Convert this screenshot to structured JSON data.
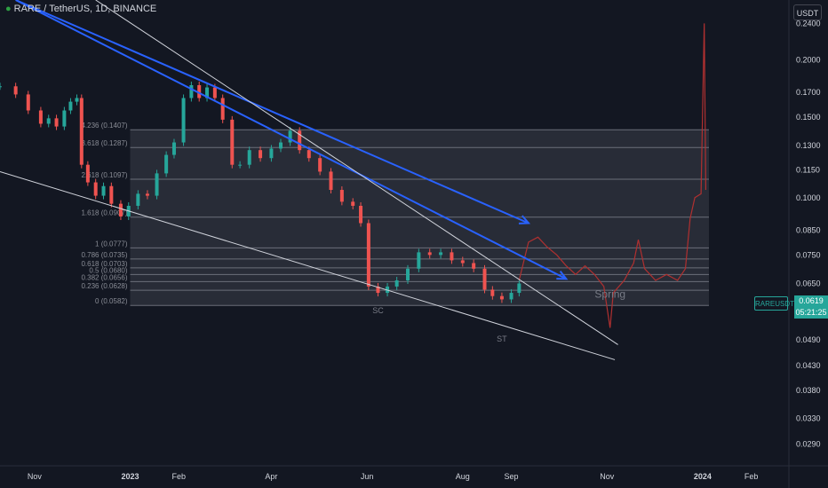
{
  "header": {
    "symbol": "RARE / TetherUS, 1D, BINANCE",
    "unit_button": "USDT"
  },
  "price_tag": {
    "symbol_label": "RAREUSDT",
    "price": "0.0619",
    "countdown": "05:21:25",
    "color": "#26a69a"
  },
  "chart_data": {
    "type": "line",
    "title": "RARE / TetherUS, 1D, BINANCE",
    "y_scale": "log",
    "ylim": [
      0.026,
      0.27
    ],
    "y_ticks": [
      0.24,
      0.2,
      0.17,
      0.15,
      0.13,
      0.115,
      0.1,
      0.085,
      0.075,
      0.065,
      0.049,
      0.043,
      0.038,
      0.033,
      0.029
    ],
    "y_tick_labels": [
      "0.2400",
      "0.2000",
      "0.1700",
      "0.1500",
      "0.1300",
      "0.1150",
      "0.1000",
      "0.0850",
      "0.0750",
      "0.0650",
      "0.0490",
      "0.0430",
      "0.0380",
      "0.0330",
      "0.0290"
    ],
    "x_axis_type": "date",
    "xlim": [
      "2022-10-10",
      "2024-02-25"
    ],
    "x_ticks": [
      "2022-11-01",
      "2023-01-01",
      "2023-02-01",
      "2023-04-01",
      "2023-06-01",
      "2023-08-01",
      "2023-09-01",
      "2023-11-01",
      "2024-01-01",
      "2024-02-01"
    ],
    "x_tick_labels": [
      "Nov",
      "2023",
      "Feb",
      "Apr",
      "Jun",
      "Aug",
      "Sep",
      "Nov",
      "2024",
      "Feb"
    ],
    "series": [
      {
        "style": "candles",
        "colors": {
          "up": "#26a69a",
          "down": "#ef5350"
        },
        "points": [
          {
            "x": "2022-10-10",
            "y": 0.175
          },
          {
            "x": "2022-10-20",
            "y": 0.168
          },
          {
            "x": "2022-10-28",
            "y": 0.155
          },
          {
            "x": "2022-11-05",
            "y": 0.145
          },
          {
            "x": "2022-11-10",
            "y": 0.149
          },
          {
            "x": "2022-11-15",
            "y": 0.143
          },
          {
            "x": "2022-11-20",
            "y": 0.155
          },
          {
            "x": "2022-11-24",
            "y": 0.162
          },
          {
            "x": "2022-11-28",
            "y": 0.165
          },
          {
            "x": "2022-12-01",
            "y": 0.118
          },
          {
            "x": "2022-12-05",
            "y": 0.108
          },
          {
            "x": "2022-12-10",
            "y": 0.101
          },
          {
            "x": "2022-12-15",
            "y": 0.106
          },
          {
            "x": "2022-12-20",
            "y": 0.097
          },
          {
            "x": "2022-12-26",
            "y": 0.091
          },
          {
            "x": "2022-12-31",
            "y": 0.096
          },
          {
            "x": "2023-01-06",
            "y": 0.102
          },
          {
            "x": "2023-01-12",
            "y": 0.101
          },
          {
            "x": "2023-01-18",
            "y": 0.113
          },
          {
            "x": "2023-01-24",
            "y": 0.124
          },
          {
            "x": "2023-01-29",
            "y": 0.132
          },
          {
            "x": "2023-02-04",
            "y": 0.165
          },
          {
            "x": "2023-02-09",
            "y": 0.176
          },
          {
            "x": "2023-02-14",
            "y": 0.165
          },
          {
            "x": "2023-02-19",
            "y": 0.174
          },
          {
            "x": "2023-02-24",
            "y": 0.165
          },
          {
            "x": "2023-03-01",
            "y": 0.148
          },
          {
            "x": "2023-03-07",
            "y": 0.118
          },
          {
            "x": "2023-03-12",
            "y": 0.118
          },
          {
            "x": "2023-03-18",
            "y": 0.127
          },
          {
            "x": "2023-03-25",
            "y": 0.122
          },
          {
            "x": "2023-04-01",
            "y": 0.128
          },
          {
            "x": "2023-04-07",
            "y": 0.132
          },
          {
            "x": "2023-04-13",
            "y": 0.14
          },
          {
            "x": "2023-04-19",
            "y": 0.127
          },
          {
            "x": "2023-04-25",
            "y": 0.122
          },
          {
            "x": "2023-05-02",
            "y": 0.114
          },
          {
            "x": "2023-05-09",
            "y": 0.104
          },
          {
            "x": "2023-05-16",
            "y": 0.098
          },
          {
            "x": "2023-05-23",
            "y": 0.096
          },
          {
            "x": "2023-05-28",
            "y": 0.088
          },
          {
            "x": "2023-06-02",
            "y": 0.064
          },
          {
            "x": "2023-06-08",
            "y": 0.062
          },
          {
            "x": "2023-06-14",
            "y": 0.064
          },
          {
            "x": "2023-06-20",
            "y": 0.066
          },
          {
            "x": "2023-06-27",
            "y": 0.07
          },
          {
            "x": "2023-07-04",
            "y": 0.076
          },
          {
            "x": "2023-07-11",
            "y": 0.075
          },
          {
            "x": "2023-07-18",
            "y": 0.076
          },
          {
            "x": "2023-07-25",
            "y": 0.073
          },
          {
            "x": "2023-08-01",
            "y": 0.072
          },
          {
            "x": "2023-08-08",
            "y": 0.07
          },
          {
            "x": "2023-08-15",
            "y": 0.063
          },
          {
            "x": "2023-08-20",
            "y": 0.061
          },
          {
            "x": "2023-08-26",
            "y": 0.06
          },
          {
            "x": "2023-09-01",
            "y": 0.062
          },
          {
            "x": "2023-09-06",
            "y": 0.065
          }
        ]
      },
      {
        "style": "projection-line",
        "color": "#b03030",
        "points": [
          {
            "x": "2023-09-06",
            "y": 0.066
          },
          {
            "x": "2023-09-12",
            "y": 0.08
          },
          {
            "x": "2023-09-18",
            "y": 0.082
          },
          {
            "x": "2023-09-24",
            "y": 0.078
          },
          {
            "x": "2023-09-30",
            "y": 0.075
          },
          {
            "x": "2023-10-06",
            "y": 0.071
          },
          {
            "x": "2023-10-12",
            "y": 0.068
          },
          {
            "x": "2023-10-18",
            "y": 0.071
          },
          {
            "x": "2023-10-24",
            "y": 0.068
          },
          {
            "x": "2023-10-30",
            "y": 0.064
          },
          {
            "x": "2023-11-03",
            "y": 0.052
          },
          {
            "x": "2023-11-05",
            "y": 0.062
          },
          {
            "x": "2023-11-12",
            "y": 0.066
          },
          {
            "x": "2023-11-18",
            "y": 0.072
          },
          {
            "x": "2023-11-21",
            "y": 0.081
          },
          {
            "x": "2023-11-25",
            "y": 0.07
          },
          {
            "x": "2023-12-02",
            "y": 0.066
          },
          {
            "x": "2023-12-09",
            "y": 0.068
          },
          {
            "x": "2023-12-16",
            "y": 0.066
          },
          {
            "x": "2023-12-21",
            "y": 0.07
          },
          {
            "x": "2023-12-24",
            "y": 0.09
          },
          {
            "x": "2023-12-27",
            "y": 0.1
          },
          {
            "x": "2023-12-31",
            "y": 0.102
          },
          {
            "x": "2024-01-02",
            "y": 0.24
          },
          {
            "x": "2024-01-03",
            "y": 0.104
          }
        ]
      }
    ],
    "fib_levels": [
      {
        "ratio": 4.236,
        "label": "4.236 (0.1407)",
        "price": 0.1407
      },
      {
        "ratio": 3.618,
        "label": "3.618 (0.1287)",
        "price": 0.1287
      },
      {
        "ratio": 2.618,
        "label": "2.618 (0.1097)",
        "price": 0.1097
      },
      {
        "ratio": 1.618,
        "label": "1.618 (0.0907)",
        "price": 0.0907
      },
      {
        "ratio": 1,
        "label": "1 (0.0777)",
        "price": 0.0777
      },
      {
        "ratio": 0.786,
        "label": "0.786 (0.0735)",
        "price": 0.0735
      },
      {
        "ratio": 0.618,
        "label": "0.618 (0.0703)",
        "price": 0.0703
      },
      {
        "ratio": 0.5,
        "label": "0.5 (0.0680)",
        "price": 0.068
      },
      {
        "ratio": 0.382,
        "label": "0.382 (0.0656)",
        "price": 0.0656
      },
      {
        "ratio": 0.236,
        "label": "0.236 (0.0628)",
        "price": 0.0628
      },
      {
        "ratio": 0,
        "label": "0 (0.0582)",
        "price": 0.0582
      }
    ],
    "fib_range": {
      "x_start": "2023-01-01",
      "x_end": "2024-01-05",
      "color": "#787b86"
    },
    "annotations": [
      {
        "text": "SC",
        "x": "2023-06-08",
        "y": 0.056
      },
      {
        "text": "ST",
        "x": "2023-08-26",
        "y": 0.0485
      },
      {
        "text": "Spring",
        "x": "2023-11-03",
        "y": 0.0605
      }
    ],
    "trendlines": [
      {
        "color": "#2962ff",
        "arrow": true,
        "points": [
          {
            "x": "2022-10-20",
            "y": 0.3
          },
          {
            "x": "2023-09-12",
            "y": 0.088
          }
        ]
      },
      {
        "color": "#2962ff",
        "arrow": true,
        "points": [
          {
            "x": "2022-10-20",
            "y": 0.3
          },
          {
            "x": "2023-10-06",
            "y": 0.0665
          }
        ]
      },
      {
        "color": "#d1d4dc",
        "arrow": false,
        "points": [
          {
            "x": "2022-12-10",
            "y": 0.3
          },
          {
            "x": "2023-11-08",
            "y": 0.0478
          }
        ]
      },
      {
        "color": "#d1d4dc",
        "arrow": false,
        "points": [
          {
            "x": "2022-10-10",
            "y": 0.114
          },
          {
            "x": "2023-11-06",
            "y": 0.0443
          }
        ]
      }
    ]
  }
}
